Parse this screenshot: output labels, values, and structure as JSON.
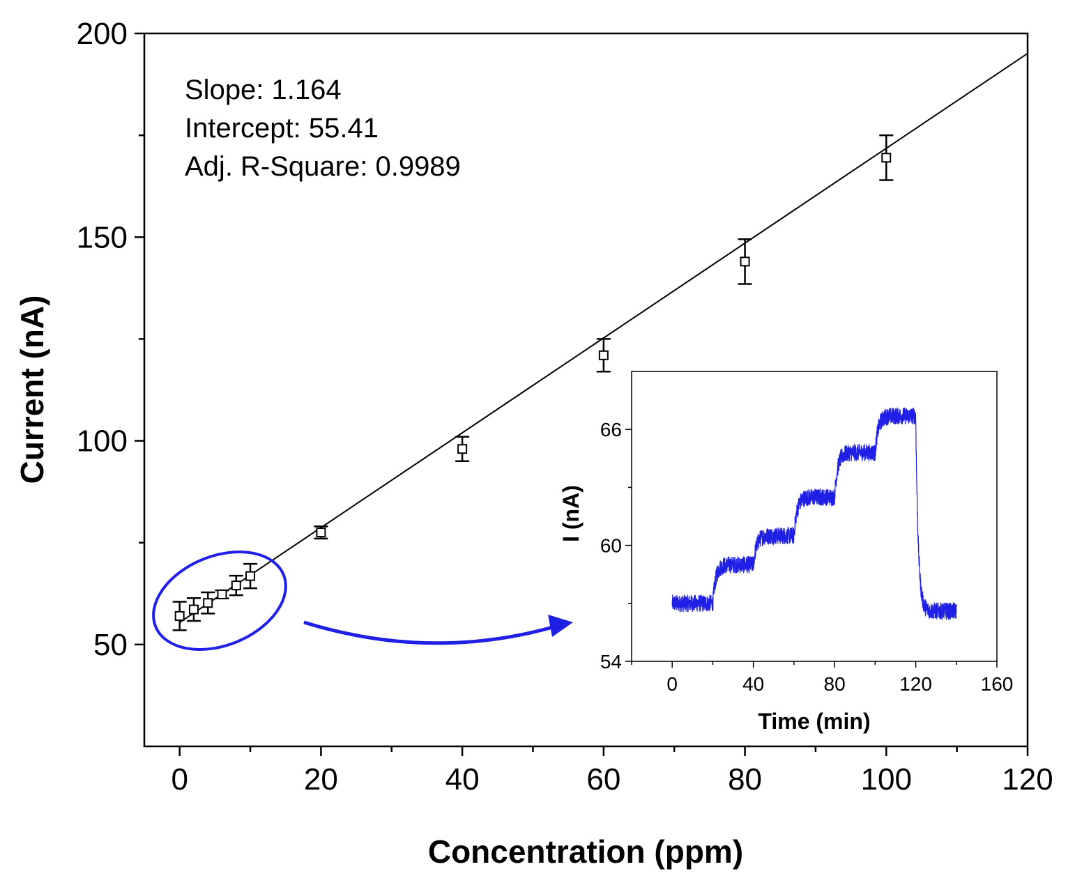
{
  "chart_data": [
    {
      "type": "scatter",
      "name": "calibration",
      "xlabel": "Concentration (ppm)",
      "ylabel": "Current (nA)",
      "xlim": [
        -5,
        120
      ],
      "ylim": [
        25,
        200
      ],
      "xticks": [
        0,
        20,
        40,
        60,
        80,
        100,
        120
      ],
      "yticks": [
        50,
        100,
        150,
        200
      ],
      "annotations": [
        "Slope: 1.164",
        "Intercept: 55.41",
        "Adj. R-Square: 0.9989"
      ],
      "fit": {
        "slope": 1.164,
        "intercept": 55.41,
        "x_range": [
          0,
          120
        ]
      },
      "points": [
        {
          "x": 0,
          "y": 57.0,
          "err": 3.5
        },
        {
          "x": 2,
          "y": 58.6,
          "err": 2.8
        },
        {
          "x": 4,
          "y": 60.2,
          "err": 2.6
        },
        {
          "x": 6,
          "y": 62.3,
          "err": 1.0
        },
        {
          "x": 8,
          "y": 64.5,
          "err": 2.4
        },
        {
          "x": 10,
          "y": 66.8,
          "err": 3.0
        },
        {
          "x": 20,
          "y": 77.5,
          "err": 1.5
        },
        {
          "x": 40,
          "y": 98.0,
          "err": 3.0
        },
        {
          "x": 60,
          "y": 121.0,
          "err": 4.0
        },
        {
          "x": 80,
          "y": 144.0,
          "err": 5.5
        },
        {
          "x": 100,
          "y": 169.5,
          "err": 5.5
        }
      ],
      "highlight_color": "#1f1fe6",
      "marker_color": "#000000"
    },
    {
      "type": "line",
      "name": "inset",
      "xlabel": "Time (min)",
      "ylabel": "I (nA)",
      "xlim": [
        -20,
        160
      ],
      "ylim": [
        54,
        69
      ],
      "xticks": [
        0,
        40,
        80,
        120,
        160
      ],
      "yticks": [
        54,
        60,
        66
      ],
      "color": "#1f1fe6",
      "steps": [
        {
          "t_start": 0,
          "t_end": 20,
          "level": 57.0
        },
        {
          "t_start": 20,
          "t_end": 40,
          "level": 59.0
        },
        {
          "t_start": 40,
          "t_end": 60,
          "level": 60.5
        },
        {
          "t_start": 60,
          "t_end": 80,
          "level": 62.5
        },
        {
          "t_start": 80,
          "t_end": 100,
          "level": 64.8
        },
        {
          "t_start": 100,
          "t_end": 120,
          "level": 66.7
        },
        {
          "t_start": 120,
          "t_end": 140,
          "level": 56.6
        }
      ]
    }
  ]
}
